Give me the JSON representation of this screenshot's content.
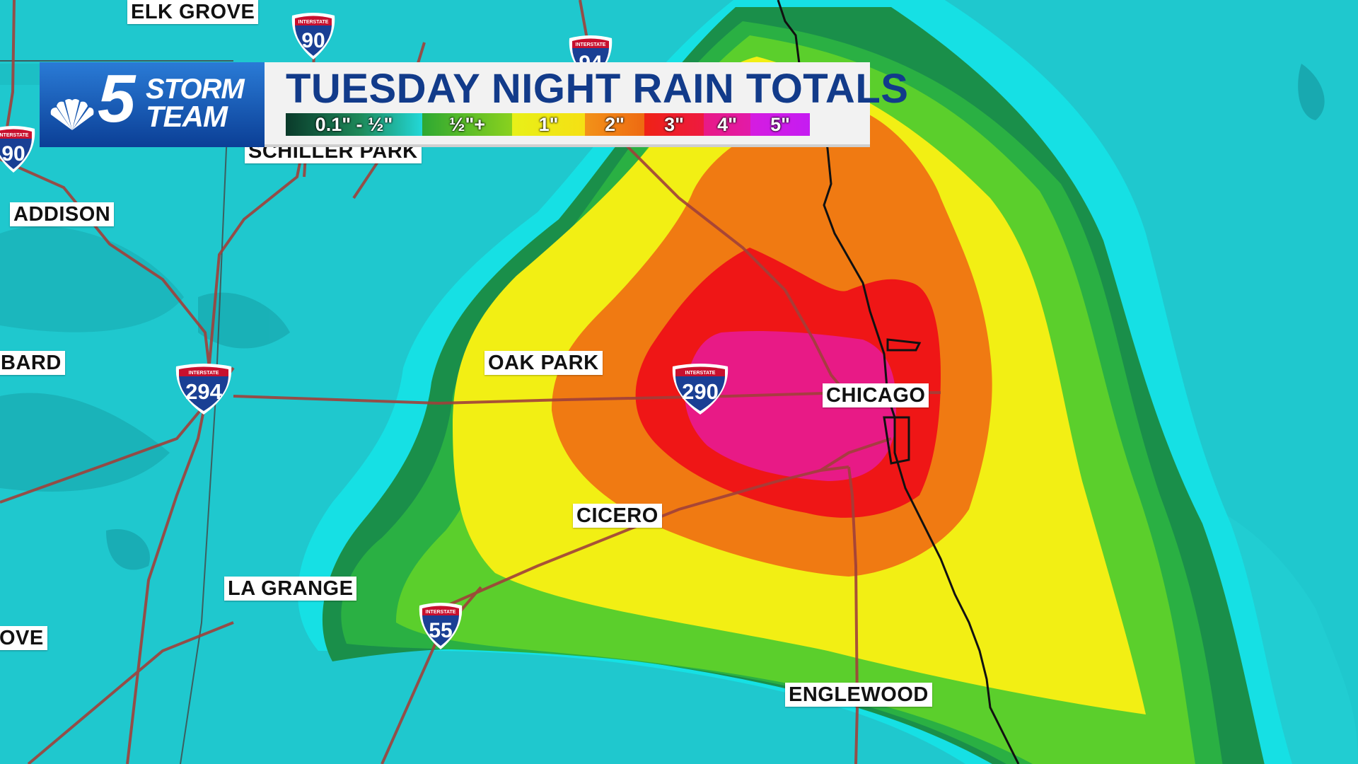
{
  "graphic": {
    "title": "TUESDAY NIGHT RAIN TOTALS",
    "brand": {
      "number": "5",
      "word1": "STORM",
      "word2": "TEAM",
      "accent": "#0b3f96"
    }
  },
  "legend": [
    {
      "label": "0.1\" - ½\"",
      "color": "#0a3a2a"
    },
    {
      "label": "½\"+",
      "color": "#4fbf2a"
    },
    {
      "label": "1\"",
      "color": "#f2ef14"
    },
    {
      "label": "2\"",
      "color": "#f07a12"
    },
    {
      "label": "3\"",
      "color": "#ef1616"
    },
    {
      "label": "4\"",
      "color": "#e81a86"
    },
    {
      "label": "5\"",
      "color": "#cc1cf0"
    }
  ],
  "places": {
    "elk_grove": "ELK GROVE",
    "schiller_park": "SCHILLER PARK",
    "addison": "ADDISON",
    "lombard": "BARD",
    "oak_park": "OAK PARK",
    "chicago": "CHICAGO",
    "cicero": "CICERO",
    "la_grange": "LA GRANGE",
    "downers_grove": "OVE",
    "englewood": "ENGLEWOOD"
  },
  "shields": {
    "i90_top": "90",
    "i94": "94",
    "i90_left": "90",
    "i294": "294",
    "i290": "290",
    "i55": "55",
    "header": "INTERSTATE"
  }
}
